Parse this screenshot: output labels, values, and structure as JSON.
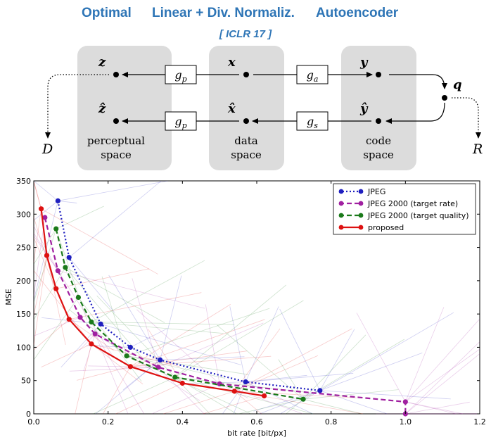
{
  "header": {
    "title_parts": [
      "Optimal",
      "Linear + Div. Normaliz.",
      "Autoencoder"
    ],
    "venue": "[ ICLR 17 ]"
  },
  "diagram": {
    "spaces": [
      {
        "top": "z",
        "bottom": "ẑ",
        "label_line1": "perceptual",
        "label_line2": "space"
      },
      {
        "top": "x",
        "bottom": "x̂",
        "label_line1": "data",
        "label_line2": "space"
      },
      {
        "top": "y",
        "bottom": "ŷ",
        "label_line1": "code",
        "label_line2": "space"
      }
    ],
    "transforms": {
      "perceptual": "g",
      "perceptual_sub": "p",
      "analysis": "g",
      "analysis_sub": "a",
      "synthesis": "g",
      "synthesis_sub": "s"
    },
    "quantizer": "q",
    "distortion": "D",
    "rate": "R"
  },
  "chart_data": {
    "type": "line",
    "xlabel": "bit rate [bit/px]",
    "ylabel": "MSE",
    "xlim": [
      0.0,
      1.2
    ],
    "ylim": [
      0,
      350
    ],
    "xticks": [
      "0.0",
      "0.2",
      "0.4",
      "0.6",
      "0.8",
      "1.0",
      "1.2"
    ],
    "yticks": [
      "0",
      "50",
      "100",
      "150",
      "200",
      "250",
      "300",
      "350"
    ],
    "legend_position": "top-right",
    "series": [
      {
        "name": "JPEG",
        "color": "#1f1fbf",
        "style": "dotted",
        "x": [
          0.065,
          0.095,
          0.18,
          0.26,
          0.34,
          0.57,
          0.77
        ],
        "y": [
          320,
          235,
          135,
          100,
          81,
          48,
          35
        ]
      },
      {
        "name": "JPEG 2000 (target rate)",
        "color": "#a020a0",
        "style": "dashed",
        "x": [
          0.03,
          0.065,
          0.125,
          0.165,
          0.335,
          0.5,
          1.0,
          1.0
        ],
        "y": [
          295,
          215,
          145,
          120,
          70,
          45,
          18,
          0
        ]
      },
      {
        "name": "JPEG 2000 (target quality)",
        "color": "#1a7a1a",
        "style": "dashed",
        "x": [
          0.06,
          0.085,
          0.12,
          0.155,
          0.25,
          0.38,
          0.725
        ],
        "y": [
          278,
          220,
          175,
          138,
          87,
          55,
          22
        ]
      },
      {
        "name": "proposed",
        "color": "#dd1111",
        "style": "solid",
        "x": [
          0.02,
          0.035,
          0.06,
          0.095,
          0.155,
          0.26,
          0.4,
          0.54,
          0.62
        ],
        "y": [
          308,
          238,
          188,
          142,
          105,
          71,
          46,
          34,
          27
        ]
      }
    ]
  }
}
